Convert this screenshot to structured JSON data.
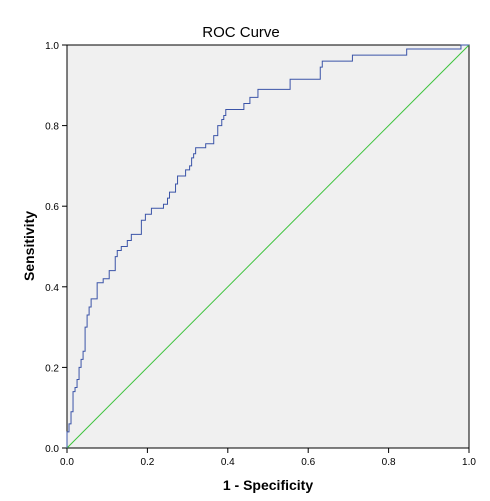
{
  "chart_data": {
    "type": "line",
    "title": "ROC Curve",
    "xlabel": "1 - Specificity",
    "ylabel": "Sensitivity",
    "xlim": [
      0,
      1
    ],
    "ylim": [
      0,
      1
    ],
    "xticks": [
      "0.0",
      "0.2",
      "0.4",
      "0.6",
      "0.8",
      "1.0"
    ],
    "yticks": [
      "0.0",
      "0.2",
      "0.4",
      "0.6",
      "0.8",
      "1.0"
    ],
    "grid": false,
    "colors": {
      "roc": "#3b54a8",
      "reference": "#3cc33c",
      "plot_bg": "#f0f0f0"
    },
    "series": [
      {
        "values_xy": [
          [
            0.0,
            0.0
          ],
          [
            0.0,
            0.04
          ],
          [
            0.005,
            0.04
          ],
          [
            0.005,
            0.06
          ],
          [
            0.01,
            0.06
          ],
          [
            0.01,
            0.09
          ],
          [
            0.015,
            0.09
          ],
          [
            0.015,
            0.14
          ],
          [
            0.02,
            0.14
          ],
          [
            0.02,
            0.15
          ],
          [
            0.025,
            0.15
          ],
          [
            0.025,
            0.17
          ],
          [
            0.03,
            0.17
          ],
          [
            0.03,
            0.2
          ],
          [
            0.035,
            0.2
          ],
          [
            0.035,
            0.22
          ],
          [
            0.04,
            0.22
          ],
          [
            0.04,
            0.24
          ],
          [
            0.045,
            0.24
          ],
          [
            0.045,
            0.3
          ],
          [
            0.05,
            0.3
          ],
          [
            0.05,
            0.33
          ],
          [
            0.055,
            0.33
          ],
          [
            0.055,
            0.35
          ],
          [
            0.06,
            0.35
          ],
          [
            0.06,
            0.37
          ],
          [
            0.075,
            0.37
          ],
          [
            0.075,
            0.41
          ],
          [
            0.09,
            0.41
          ],
          [
            0.09,
            0.42
          ],
          [
            0.105,
            0.42
          ],
          [
            0.105,
            0.44
          ],
          [
            0.12,
            0.44
          ],
          [
            0.12,
            0.475
          ],
          [
            0.125,
            0.475
          ],
          [
            0.125,
            0.49
          ],
          [
            0.135,
            0.49
          ],
          [
            0.135,
            0.5
          ],
          [
            0.15,
            0.5
          ],
          [
            0.15,
            0.515
          ],
          [
            0.16,
            0.515
          ],
          [
            0.16,
            0.53
          ],
          [
            0.185,
            0.53
          ],
          [
            0.185,
            0.565
          ],
          [
            0.195,
            0.565
          ],
          [
            0.195,
            0.58
          ],
          [
            0.21,
            0.58
          ],
          [
            0.21,
            0.595
          ],
          [
            0.24,
            0.595
          ],
          [
            0.24,
            0.605
          ],
          [
            0.25,
            0.605
          ],
          [
            0.25,
            0.62
          ],
          [
            0.255,
            0.62
          ],
          [
            0.255,
            0.635
          ],
          [
            0.27,
            0.635
          ],
          [
            0.27,
            0.655
          ],
          [
            0.275,
            0.655
          ],
          [
            0.275,
            0.675
          ],
          [
            0.295,
            0.675
          ],
          [
            0.295,
            0.69
          ],
          [
            0.305,
            0.69
          ],
          [
            0.305,
            0.7
          ],
          [
            0.31,
            0.7
          ],
          [
            0.31,
            0.72
          ],
          [
            0.315,
            0.72
          ],
          [
            0.315,
            0.73
          ],
          [
            0.32,
            0.73
          ],
          [
            0.32,
            0.745
          ],
          [
            0.345,
            0.745
          ],
          [
            0.345,
            0.755
          ],
          [
            0.365,
            0.755
          ],
          [
            0.365,
            0.775
          ],
          [
            0.375,
            0.775
          ],
          [
            0.375,
            0.8
          ],
          [
            0.385,
            0.8
          ],
          [
            0.385,
            0.815
          ],
          [
            0.39,
            0.815
          ],
          [
            0.39,
            0.825
          ],
          [
            0.395,
            0.825
          ],
          [
            0.395,
            0.84
          ],
          [
            0.44,
            0.84
          ],
          [
            0.44,
            0.855
          ],
          [
            0.455,
            0.855
          ],
          [
            0.455,
            0.87
          ],
          [
            0.475,
            0.87
          ],
          [
            0.475,
            0.89
          ],
          [
            0.555,
            0.89
          ],
          [
            0.555,
            0.915
          ],
          [
            0.63,
            0.915
          ],
          [
            0.63,
            0.945
          ],
          [
            0.635,
            0.945
          ],
          [
            0.635,
            0.96
          ],
          [
            0.71,
            0.96
          ],
          [
            0.71,
            0.975
          ],
          [
            0.845,
            0.975
          ],
          [
            0.845,
            0.99
          ],
          [
            0.98,
            0.99
          ],
          [
            0.98,
            1.0
          ],
          [
            1.0,
            1.0
          ]
        ]
      },
      {
        "values_xy": [
          [
            0.0,
            0.0
          ],
          [
            1.0,
            1.0
          ]
        ]
      }
    ]
  }
}
